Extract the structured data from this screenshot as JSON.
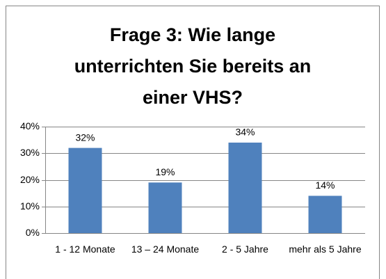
{
  "chart_data": {
    "type": "bar",
    "title": "Frage 3: Wie lange unterrichten Sie bereits an einer VHS?",
    "categories": [
      "1 - 12 Monate",
      "13 – 24 Monate",
      "2 - 5 Jahre",
      "mehr als 5 Jahre"
    ],
    "values": [
      32,
      19,
      34,
      14
    ],
    "value_labels": [
      "32%",
      "19%",
      "34%",
      "14%"
    ],
    "color": "#4f81bd",
    "ylim": [
      0,
      40
    ],
    "yticks": [
      {
        "value": 0,
        "label": "0%"
      },
      {
        "value": 10,
        "label": "10%"
      },
      {
        "value": 20,
        "label": "20%"
      },
      {
        "value": 30,
        "label": "30%"
      },
      {
        "value": 40,
        "label": "40%"
      }
    ],
    "grid": true
  }
}
